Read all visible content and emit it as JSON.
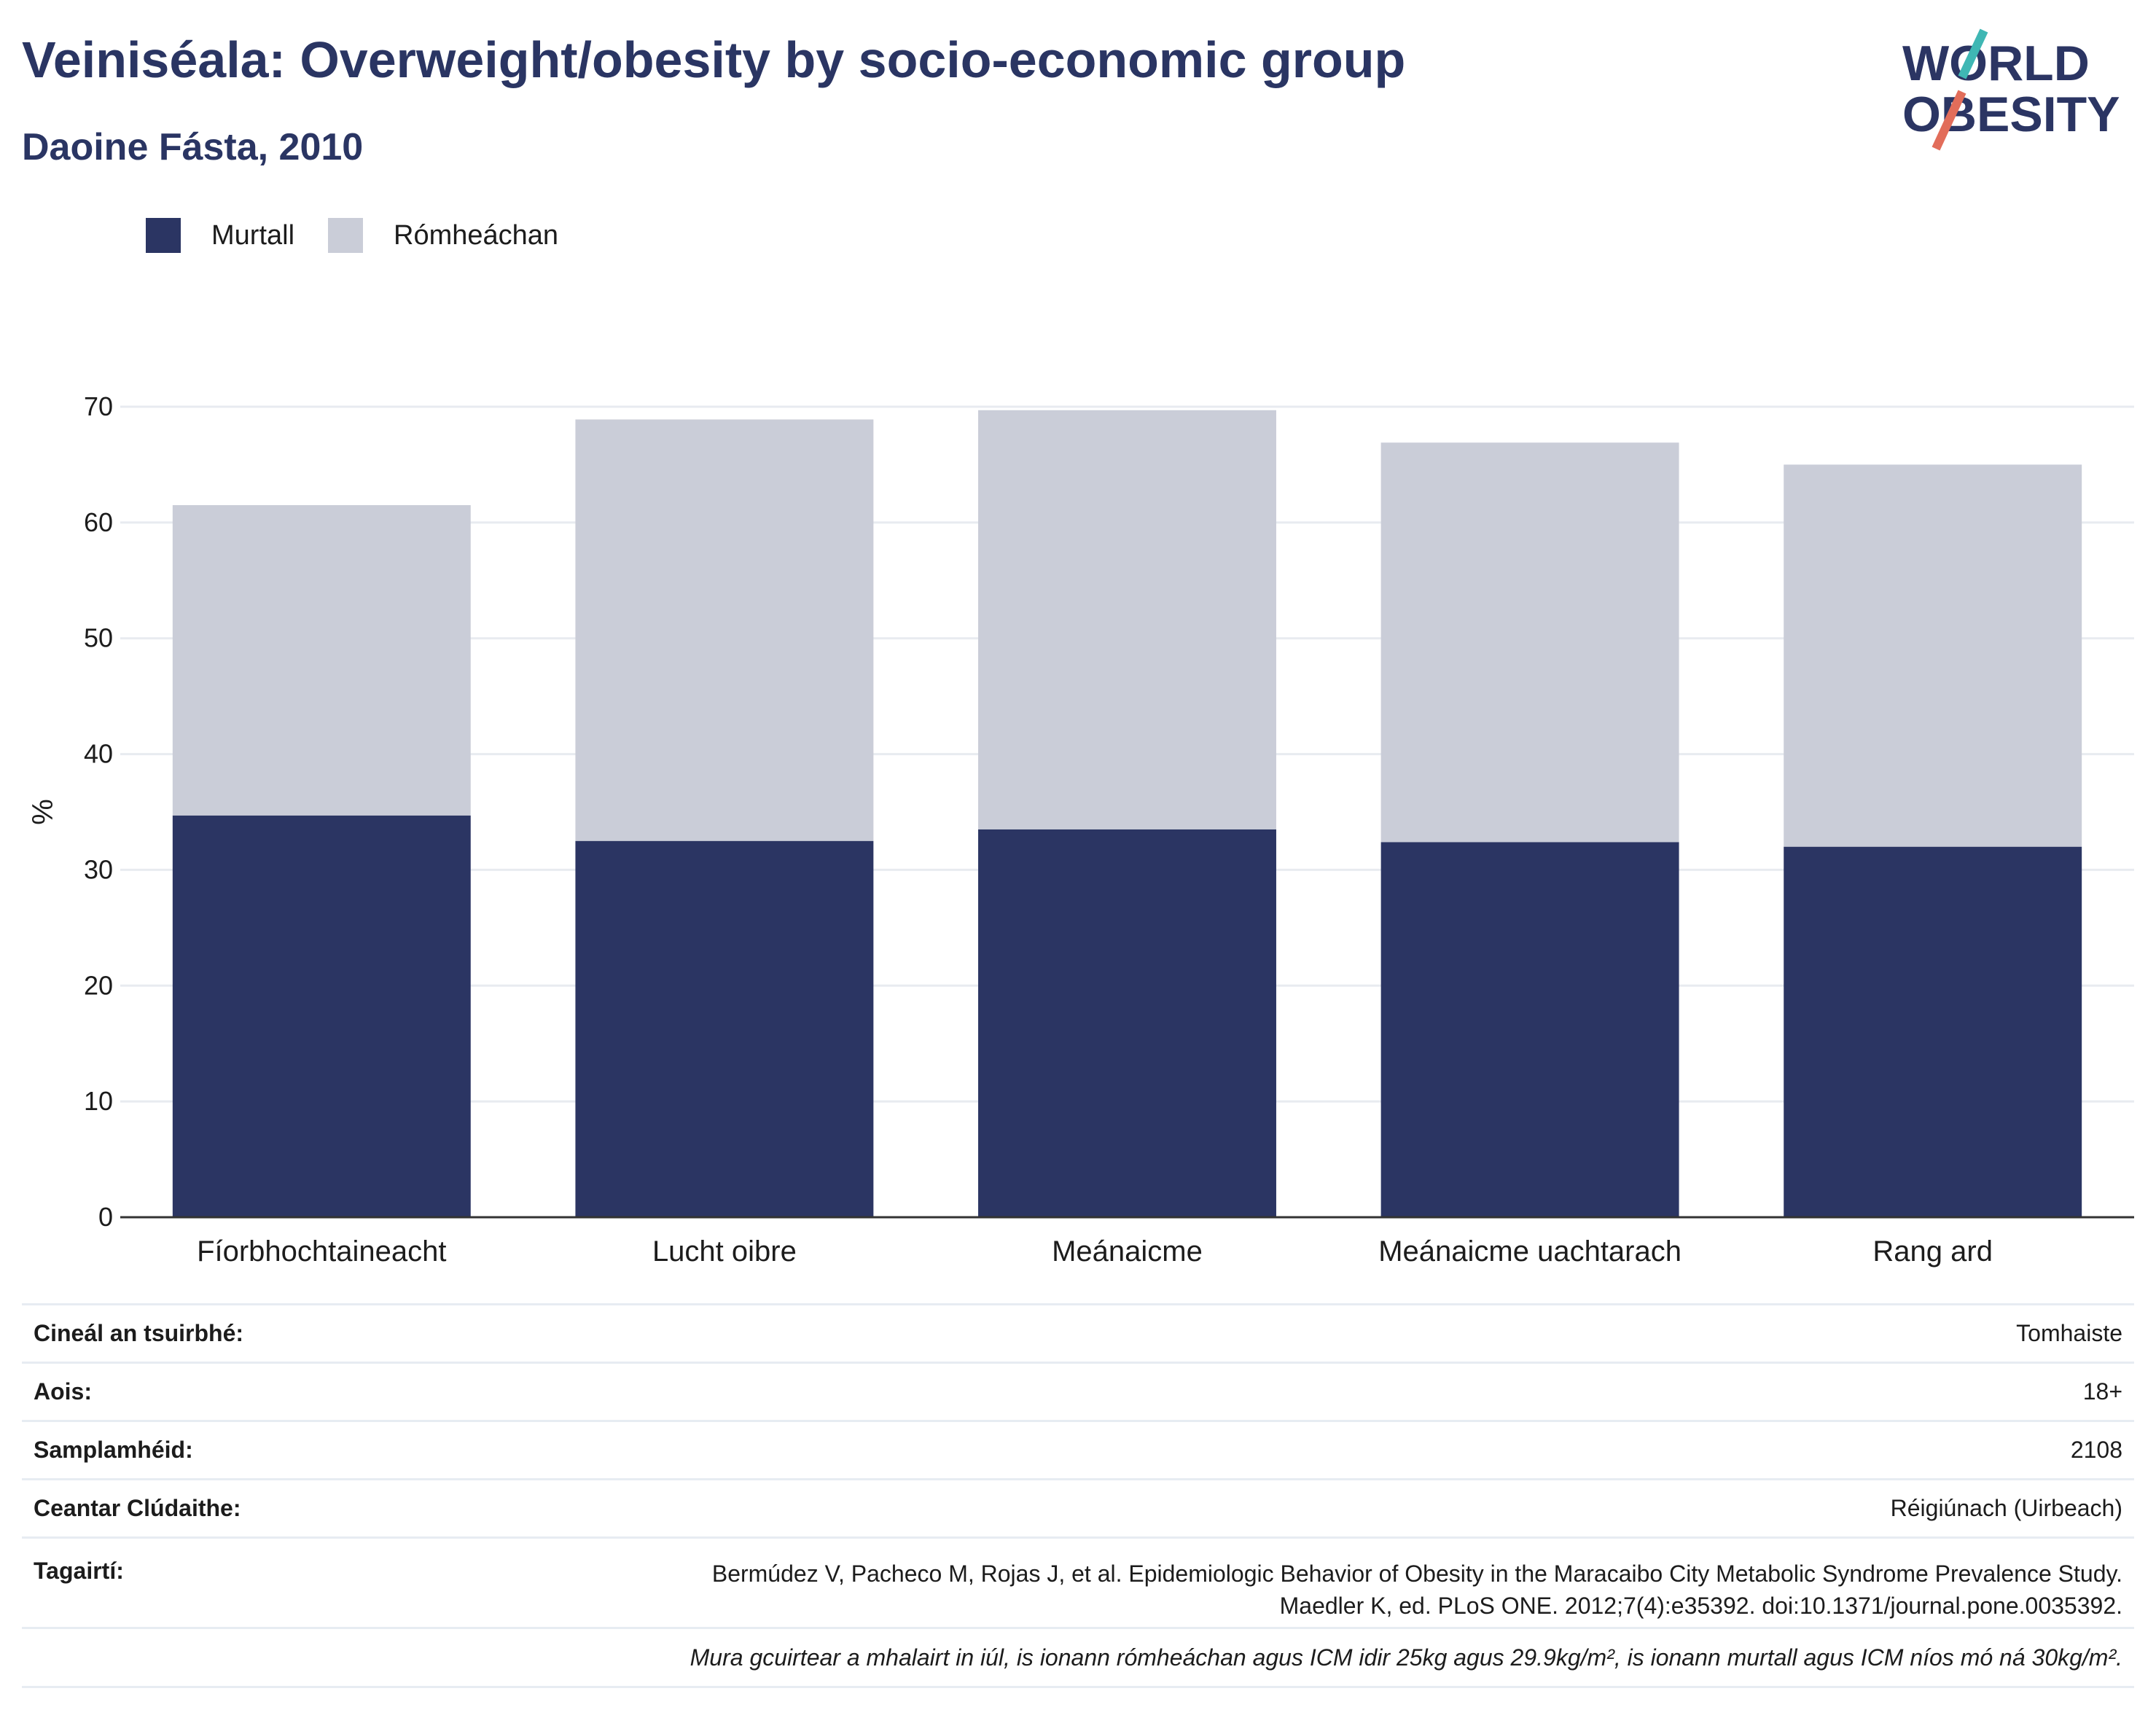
{
  "header": {
    "title": "Veiniséala: Overweight/obesity by socio-economic group",
    "subtitle": "Daoine Fásta, 2010"
  },
  "logo": {
    "line1": "WORLD",
    "line2": "OBESITY"
  },
  "colors": {
    "obese": "#2b3563",
    "overweight": "#cacdd8",
    "text": "#2a3563",
    "grid": "#e8ebf0",
    "axis": "#333333"
  },
  "legend": [
    {
      "label": "Murtall",
      "color": "#2b3563"
    },
    {
      "label": "Rómheáchan",
      "color": "#cacdd8"
    }
  ],
  "chart_data": {
    "type": "bar",
    "stacked": true,
    "categories": [
      "Fíorbhochtaineacht",
      "Lucht oibre",
      "Meánaicme",
      "Meánaicme uachtarach",
      "Rang ard"
    ],
    "series": [
      {
        "name": "Murtall",
        "values": [
          34.7,
          32.5,
          33.5,
          32.4,
          32.0
        ]
      },
      {
        "name": "Rómheáchan",
        "values": [
          26.8,
          36.4,
          36.2,
          34.5,
          33.0
        ]
      }
    ],
    "ylabel": "%",
    "ylim": [
      0,
      70
    ],
    "yticks": [
      0,
      10,
      20,
      30,
      40,
      50,
      60,
      70
    ],
    "grid": true,
    "legend_position": "top-left"
  },
  "meta": [
    {
      "key": "Cineál an tsuirbhé:",
      "value": "Tomhaiste"
    },
    {
      "key": "Aois:",
      "value": "18+"
    },
    {
      "key": "Samplamhéid:",
      "value": "2108"
    },
    {
      "key": "Ceantar Clúdaithe:",
      "value": "Réigiúnach (Uirbeach)"
    }
  ],
  "reference": {
    "key": "Tagairtí:",
    "line1": "Bermúdez V, Pacheco M, Rojas J, et al. Epidemiologic Behavior of Obesity in the Maracaibo City Metabolic Syndrome Prevalence Study.",
    "line2": "Maedler K, ed. PLoS ONE. 2012;7(4):e35392. doi:10.1371/journal.pone.0035392."
  },
  "note": "Mura gcuirtear a mhalairt in iúl, is ionann rómheáchan agus ICM idir 25kg agus 29.9kg/m², is ionann murtall agus ICM níos mó ná 30kg/m²."
}
